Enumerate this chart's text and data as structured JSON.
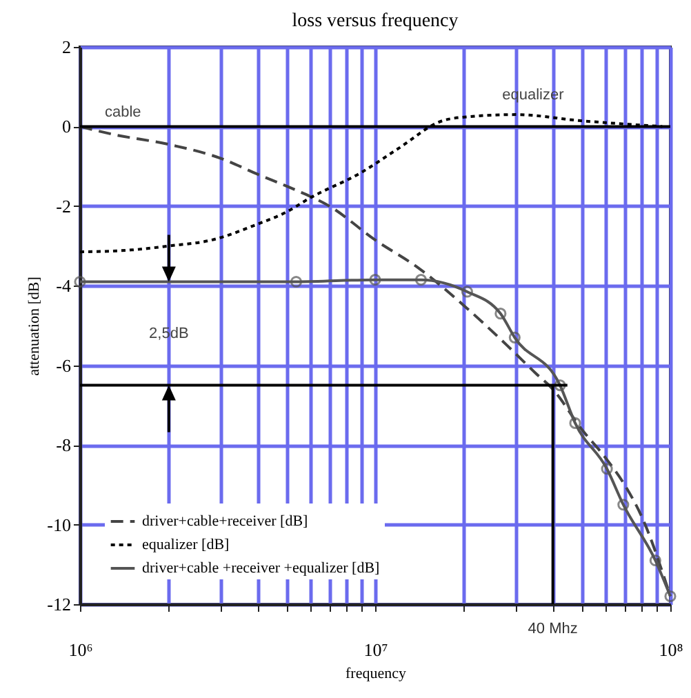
{
  "chart_data": {
    "type": "line",
    "title": "loss versus frequency",
    "xlabel": "frequency",
    "ylabel": "attenuation [dB]",
    "log": "x",
    "grid": true,
    "legend": "bottom left",
    "xlim": [
      1000000,
      100000000
    ],
    "ylim": [
      -12,
      2
    ],
    "xticks": [
      {
        "value": 1000000,
        "label": "10⁶"
      },
      {
        "value": 2000000,
        "label": null
      },
      {
        "value": 3000000,
        "label": null
      },
      {
        "value": 4000000,
        "label": null
      },
      {
        "value": 5000000,
        "label": null
      },
      {
        "value": 6000000,
        "label": null
      },
      {
        "value": 7000000,
        "label": null
      },
      {
        "value": 8000000,
        "label": null
      },
      {
        "value": 9000000,
        "label": null
      },
      {
        "value": 10000000,
        "label": "10⁷"
      },
      {
        "value": 20000000,
        "label": null
      },
      {
        "value": 30000000,
        "label": null
      },
      {
        "value": 40000000,
        "label": null
      },
      {
        "value": 50000000,
        "label": null
      },
      {
        "value": 60000000,
        "label": null
      },
      {
        "value": 70000000,
        "label": null
      },
      {
        "value": 80000000,
        "label": null
      },
      {
        "value": 90000000,
        "label": null
      },
      {
        "value": 100000000,
        "label": "10⁸"
      }
    ],
    "yticks": [
      -12,
      -10,
      -8,
      -6,
      -4,
      -2,
      0,
      2
    ],
    "series": [
      {
        "name": "driver+cable+receiver [dB]",
        "color": "#444444",
        "line_style": "dashed",
        "marker": "none",
        "x": [
          1000000,
          1300000,
          2000000,
          3000000,
          4000000,
          5400000,
          7000000,
          10000000,
          14000000,
          20000000,
          28000000,
          35000000,
          40000000,
          50000000,
          60000000,
          70000000,
          80000000,
          100000000
        ],
        "values": [
          0,
          -0.2,
          -0.45,
          -0.8,
          -1.2,
          -1.6,
          -2.0,
          -2.85,
          -3.55,
          -4.5,
          -5.5,
          -6.2,
          -6.6,
          -7.6,
          -8.3,
          -9.0,
          -9.8,
          -11.8
        ]
      },
      {
        "name": "equalizer [dB]",
        "color": "#000000",
        "line_style": "dotted",
        "marker": "none",
        "x": [
          1000000,
          1500000,
          2000000,
          2800000,
          4000000,
          5000000,
          6000000,
          9000000,
          12000000,
          17000000,
          21000000,
          30000000,
          49000000,
          94000000
        ],
        "values": [
          -3.15,
          -3.1,
          -3.0,
          -2.85,
          -2.45,
          -2.15,
          -1.8,
          -1.15,
          -0.55,
          0.15,
          0.25,
          0.3,
          0.15,
          0
        ]
      },
      {
        "name": "driver+cable +receiver +equalizer [dB]",
        "color": "#555555",
        "line_style": "solid",
        "marker": "circle",
        "x": [
          1000000,
          5400000,
          10000000,
          14300000,
          20500000,
          26600000,
          29700000,
          42300000,
          47600000,
          61000000,
          69300000,
          89000000,
          100000000
        ],
        "values": [
          -3.9,
          -3.9,
          -3.85,
          -3.85,
          -4.15,
          -4.7,
          -5.3,
          -6.5,
          -7.45,
          -8.6,
          -9.5,
          -10.9,
          -11.8
        ]
      }
    ],
    "ref_lines": [
      {
        "axis": "y",
        "value": 0,
        "color": "#000000"
      },
      {
        "axis": "y",
        "value": -6.5,
        "color": "#000000"
      },
      {
        "axis": "x",
        "value": 40000000,
        "label": "40 Mhz",
        "color": "#000000"
      }
    ],
    "annotations": [
      "cable",
      "equalizer",
      "2,5dB"
    ]
  }
}
